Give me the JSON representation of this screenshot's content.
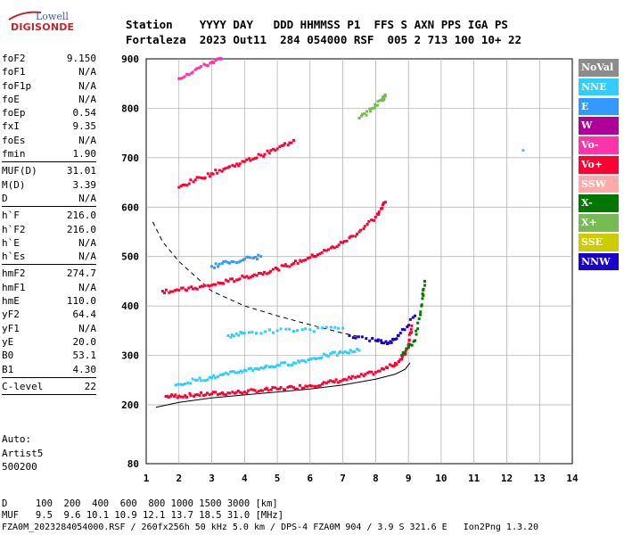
{
  "logo": {
    "line1": "Lowell",
    "line2": "DIGISONDE"
  },
  "header": {
    "labels": "Station    YYYY DAY   DDD HHMMSS P1  FFS S AXN PPS IGA PS",
    "values": "Fortaleza  2023 Out11  284 054000 RSF  005 2 713 100 10+ 22"
  },
  "params": [
    [
      {
        "k": "foF2",
        "v": "9.150"
      },
      {
        "k": "foF1",
        "v": "N/A"
      },
      {
        "k": "foF1p",
        "v": "N/A"
      },
      {
        "k": "foE",
        "v": "N/A"
      },
      {
        "k": "foEp",
        "v": "0.54"
      },
      {
        "k": "fxI",
        "v": "9.35"
      },
      {
        "k": "foEs",
        "v": "N/A"
      },
      {
        "k": "fmin",
        "v": "1.90"
      }
    ],
    [
      {
        "k": "MUF(D)",
        "v": "31.01"
      },
      {
        "k": "M(D)",
        "v": "3.39"
      },
      {
        "k": "D",
        "v": "N/A"
      }
    ],
    [
      {
        "k": "h`F",
        "v": "216.0"
      },
      {
        "k": "h`F2",
        "v": "216.0"
      },
      {
        "k": "h`E",
        "v": "N/A"
      },
      {
        "k": "h`Es",
        "v": "N/A"
      }
    ],
    [
      {
        "k": "hmF2",
        "v": "274.7"
      },
      {
        "k": "hmF1",
        "v": "N/A"
      },
      {
        "k": "hmE",
        "v": "110.0"
      },
      {
        "k": "yF2",
        "v": "64.4"
      },
      {
        "k": "yF1",
        "v": "N/A"
      },
      {
        "k": "yE",
        "v": "20.0"
      },
      {
        "k": "B0",
        "v": "53.1"
      },
      {
        "k": "B1",
        "v": "4.30"
      }
    ],
    [
      {
        "k": "C-level",
        "v": "22"
      }
    ]
  ],
  "auto": {
    "line1": "Auto:",
    "line2": "Artist5",
    "line3": "500200"
  },
  "legend": [
    {
      "label": "NoVal",
      "color": "#8c8c8c"
    },
    {
      "label": "NNE",
      "color": "#33ccff"
    },
    {
      "label": "E",
      "color": "#3399ff"
    },
    {
      "label": "W",
      "color": "#b0009a"
    },
    {
      "label": "Vo-",
      "color": "#ff33aa"
    },
    {
      "label": "Vo+",
      "color": "#ff0033"
    },
    {
      "label": "SSW",
      "color": "#ffaaaa"
    },
    {
      "label": "X-",
      "color": "#007700"
    },
    {
      "label": "X+",
      "color": "#77bb55"
    },
    {
      "label": "SSE",
      "color": "#cccc00"
    },
    {
      "label": "NNW",
      "color": "#1a00cc"
    }
  ],
  "bottom": {
    "line1": "D     100  200  400  600  800 1000 1500 3000 [km]",
    "line2": "MUF   9.5  9.6 10.1 10.9 12.1 13.7 18.5 31.0 [MHz]",
    "line3": "FZA0M_2023284054000.RSF / 260fx256h 50 kHz 5.0 km / DPS-4 FZA0M 904 / 3.9 S 321.6 E   Ion2Png 1.3.20"
  },
  "chart_data": {
    "type": "scatter",
    "xlim": [
      1,
      14
    ],
    "ylim": [
      80,
      900
    ],
    "y_scale": "piecewise (80-200 compressed)",
    "x_ticks": [
      1,
      2,
      3,
      4,
      5,
      6,
      7,
      8,
      9,
      10,
      11,
      12,
      13,
      14
    ],
    "y_ticks": [
      80,
      200,
      300,
      400,
      500,
      600,
      700,
      800,
      900
    ],
    "grid": true,
    "series": [
      {
        "name": "Vo+",
        "color": "#ff0033",
        "points": [
          [
            1.6,
            217
          ],
          [
            2.0,
            218
          ],
          [
            2.5,
            220
          ],
          [
            3.0,
            222
          ],
          [
            3.5,
            224
          ],
          [
            4.0,
            226
          ],
          [
            4.5,
            229
          ],
          [
            5.0,
            232
          ],
          [
            5.5,
            235
          ],
          [
            6.0,
            239
          ],
          [
            6.5,
            244
          ],
          [
            7.0,
            250
          ],
          [
            7.5,
            257
          ],
          [
            8.0,
            266
          ],
          [
            8.5,
            279
          ],
          [
            8.8,
            292
          ],
          [
            9.0,
            320
          ],
          [
            9.1,
            360
          ]
        ]
      },
      {
        "name": "Vo+",
        "color": "#ff0033",
        "points": [
          [
            1.5,
            430
          ],
          [
            2.0,
            432
          ],
          [
            2.5,
            436
          ],
          [
            3.0,
            442
          ],
          [
            3.5,
            450
          ],
          [
            4.0,
            458
          ],
          [
            4.5,
            466
          ],
          [
            5.0,
            475
          ],
          [
            5.5,
            486
          ],
          [
            6.0,
            498
          ],
          [
            6.5,
            512
          ],
          [
            7.0,
            528
          ],
          [
            7.5,
            550
          ],
          [
            8.0,
            580
          ],
          [
            8.3,
            610
          ]
        ]
      },
      {
        "name": "Vo+",
        "color": "#ff0033",
        "points": [
          [
            2.0,
            640
          ],
          [
            2.5,
            655
          ],
          [
            3.0,
            668
          ],
          [
            3.5,
            680
          ],
          [
            4.0,
            692
          ],
          [
            4.5,
            705
          ],
          [
            5.0,
            718
          ],
          [
            5.5,
            735
          ]
        ]
      },
      {
        "name": "Vo-",
        "color": "#ff33aa",
        "points": [
          [
            2.0,
            860
          ],
          [
            2.5,
            878
          ],
          [
            3.0,
            893
          ],
          [
            3.3,
            900
          ]
        ]
      },
      {
        "name": "X+",
        "color": "#77bb55",
        "points": [
          [
            7.5,
            780
          ],
          [
            7.9,
            800
          ],
          [
            8.2,
            818
          ],
          [
            8.3,
            825
          ]
        ]
      },
      {
        "name": "NNE",
        "color": "#33ccff",
        "points": [
          [
            1.9,
            240
          ],
          [
            2.5,
            250
          ],
          [
            3.0,
            255
          ],
          [
            3.5,
            262
          ],
          [
            4.0,
            270
          ],
          [
            4.5,
            275
          ],
          [
            5.0,
            280
          ],
          [
            5.5,
            285
          ],
          [
            6.0,
            292
          ],
          [
            6.5,
            300
          ],
          [
            7.0,
            305
          ],
          [
            7.5,
            310
          ]
        ]
      },
      {
        "name": "NNE",
        "color": "#33ccff",
        "points": [
          [
            3.5,
            340
          ],
          [
            4.0,
            345
          ],
          [
            5.0,
            350
          ],
          [
            6.0,
            352
          ],
          [
            7.0,
            355
          ]
        ]
      },
      {
        "name": "E",
        "color": "#3399ff",
        "points": [
          [
            3.0,
            480
          ],
          [
            3.5,
            488
          ],
          [
            4.0,
            495
          ],
          [
            4.5,
            500
          ]
        ]
      },
      {
        "name": "NNE",
        "color": "#33ccff",
        "points": [
          [
            12.5,
            715
          ]
        ]
      },
      {
        "name": "X-",
        "color": "#007700",
        "points": [
          [
            8.8,
            300
          ],
          [
            9.2,
            330
          ],
          [
            9.4,
            400
          ],
          [
            9.5,
            450
          ]
        ]
      },
      {
        "name": "NNW",
        "color": "#1a00cc",
        "points": [
          [
            7.2,
            340
          ],
          [
            8.0,
            330
          ],
          [
            8.4,
            325
          ],
          [
            8.7,
            340
          ],
          [
            9.2,
            380
          ]
        ]
      }
    ],
    "profile_solid": [
      [
        1.3,
        195
      ],
      [
        2,
        205
      ],
      [
        3,
        214
      ],
      [
        4,
        220
      ],
      [
        5,
        226
      ],
      [
        6,
        232
      ],
      [
        7,
        240
      ],
      [
        8,
        252
      ],
      [
        8.6,
        262
      ],
      [
        8.9,
        272
      ],
      [
        9.05,
        285
      ]
    ],
    "profile_dashed": [
      [
        1.2,
        570
      ],
      [
        1.5,
        530
      ],
      [
        2,
        490
      ],
      [
        3,
        430
      ],
      [
        4,
        400
      ],
      [
        5,
        380
      ],
      [
        6,
        362
      ],
      [
        7,
        345
      ],
      [
        7.5,
        338
      ]
    ]
  }
}
